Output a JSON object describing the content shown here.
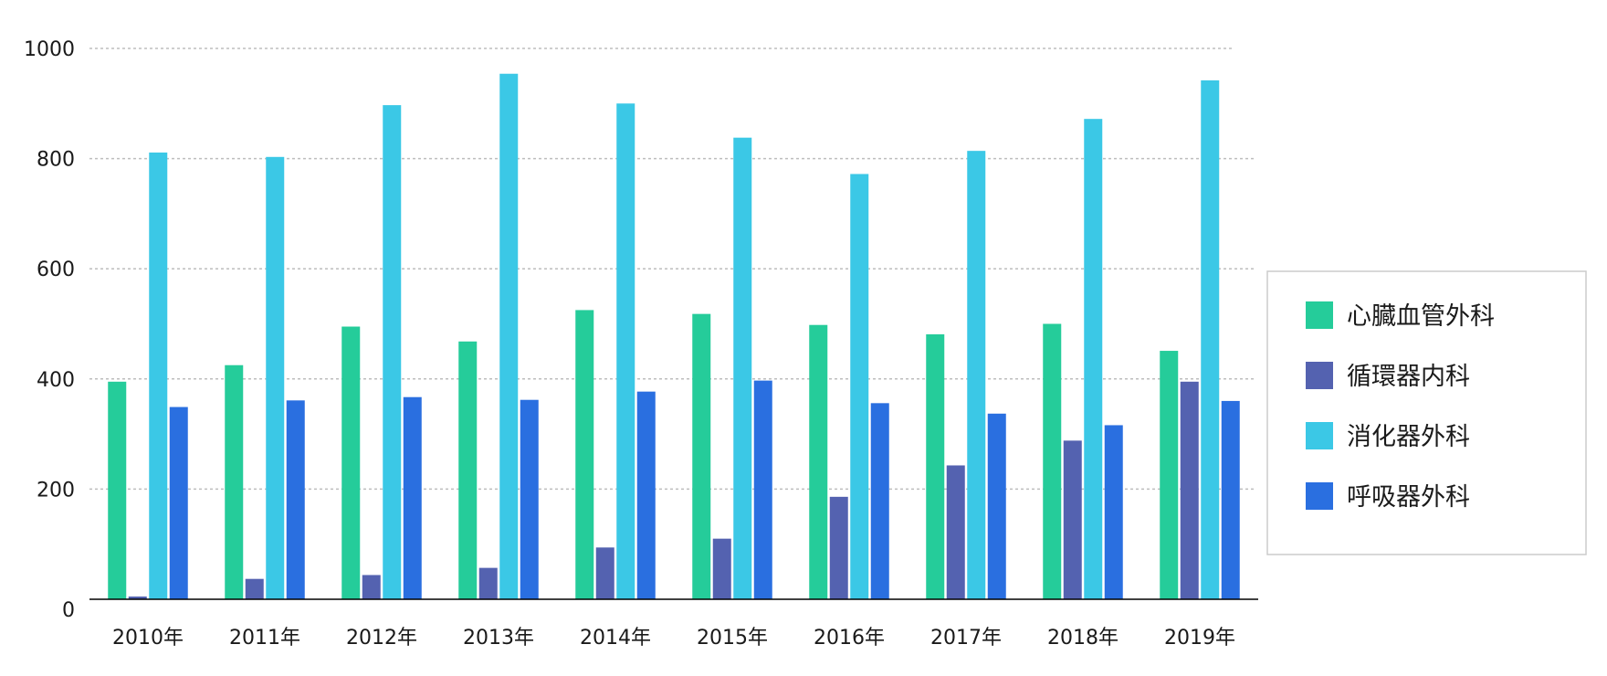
{
  "chart_data": {
    "type": "bar",
    "title": "",
    "xlabel": "",
    "ylabel": "",
    "ylim": [
      0,
      1000
    ],
    "yticks": [
      0,
      200,
      400,
      600,
      800,
      1000
    ],
    "grid": true,
    "legend_position": "right",
    "categories": [
      "2010年",
      "2011年",
      "2012年",
      "2013年",
      "2014年",
      "2015年",
      "2016年",
      "2017年",
      "2018年",
      "2019年"
    ],
    "series": [
      {
        "name": "心臓血管外科",
        "color": "#25cc9a",
        "values": [
          395,
          425,
          495,
          468,
          525,
          518,
          498,
          481,
          500,
          451
        ]
      },
      {
        "name": "循環器内科",
        "color": "#5462b0",
        "values": [
          5,
          37,
          44,
          57,
          94,
          110,
          186,
          243,
          288,
          395
        ]
      },
      {
        "name": "消化器外科",
        "color": "#3bc8e6",
        "values": [
          811,
          803,
          897,
          954,
          900,
          838,
          772,
          814,
          872,
          942
        ]
      },
      {
        "name": "呼吸器外科",
        "color": "#2a6fe0",
        "values": [
          349,
          361,
          367,
          362,
          377,
          397,
          356,
          337,
          316,
          360
        ]
      }
    ]
  }
}
